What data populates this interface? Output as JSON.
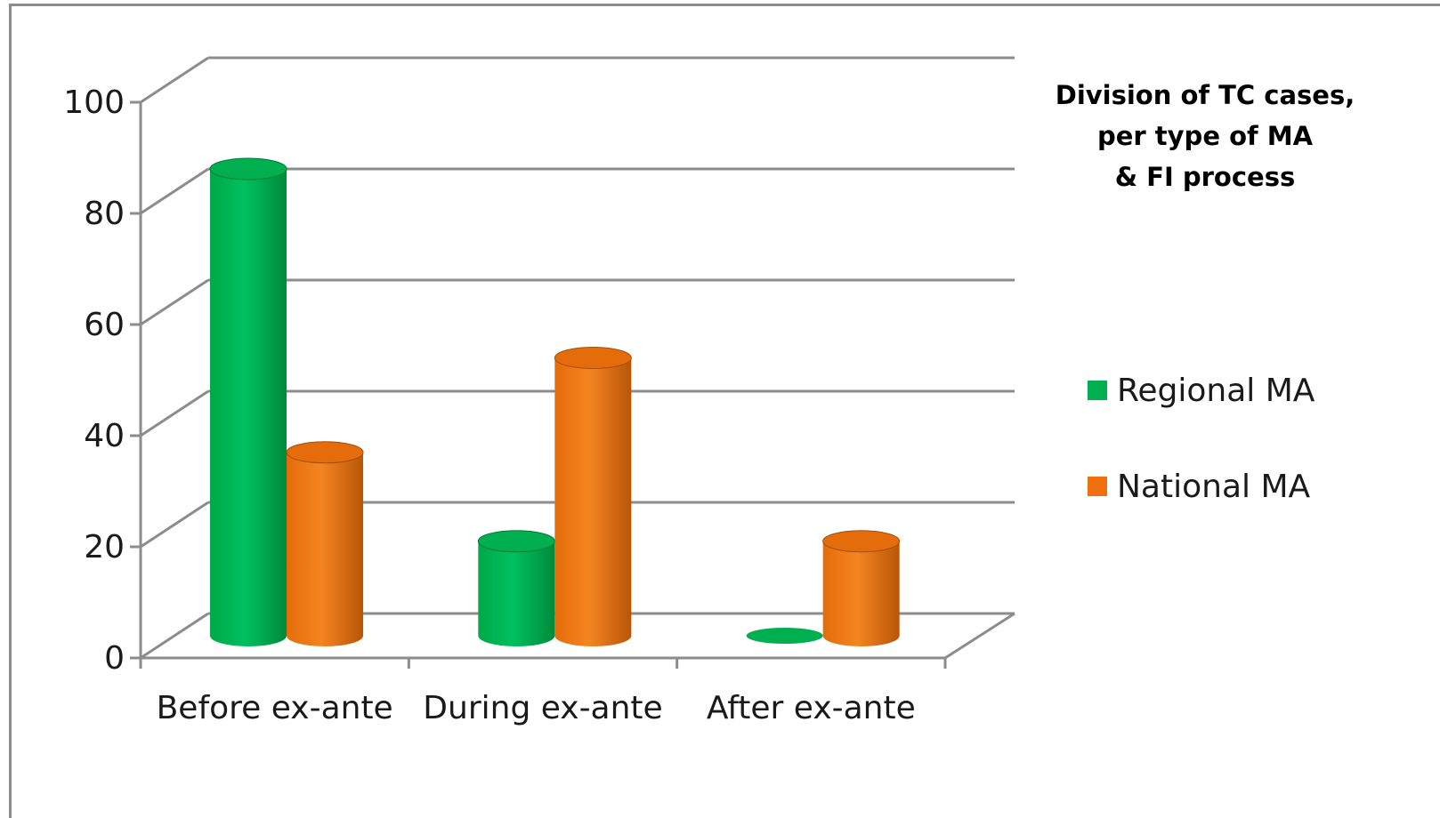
{
  "chart_data": {
    "type": "bar",
    "style": "3d-cylinder",
    "title_lines": [
      "Division of TC cases,",
      "per type of MA",
      "& FI process"
    ],
    "categories": [
      "Before ex-ante",
      "During ex-ante",
      "After ex-ante"
    ],
    "series": [
      {
        "name": "Regional MA",
        "values": [
          84,
          17,
          0
        ],
        "color": "#00b050"
      },
      {
        "name": "National MA",
        "values": [
          33,
          50,
          17
        ],
        "color": "#f07010"
      }
    ],
    "ylim": [
      0,
      100
    ],
    "yticks": [
      0,
      20,
      40,
      60,
      80,
      100
    ],
    "ytick_labels": [
      "0",
      "20",
      "40",
      "60",
      "80",
      "100"
    ],
    "grid": true,
    "legend_position": "right"
  }
}
